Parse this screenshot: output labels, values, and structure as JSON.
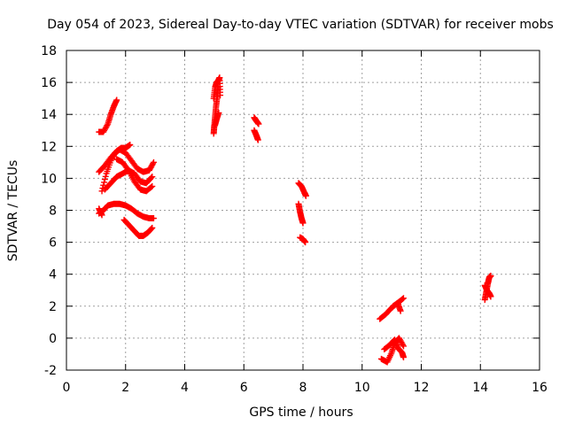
{
  "chart_data": {
    "type": "scatter",
    "title": "Day 054 of 2023, Sidereal Day-to-day VTEC variation (SDTVAR) for receiver mobs",
    "xlabel": "GPS time / hours",
    "ylabel": "SDTVAR / TECUs",
    "xlim": [
      0,
      16
    ],
    "ylim": [
      -2,
      18
    ],
    "xticks": [
      0,
      2,
      4,
      6,
      8,
      10,
      12,
      14,
      16
    ],
    "yticks": [
      -2,
      0,
      2,
      4,
      6,
      8,
      10,
      12,
      14,
      16,
      18
    ],
    "grid": true,
    "marker": "+",
    "series": [
      {
        "name": "SDTVAR",
        "color": "#ff0000",
        "tracks": [
          {
            "x": [
              1.1,
              1.25,
              1.4,
              1.5,
              1.6,
              1.7
            ],
            "y": [
              12.9,
              12.9,
              13.4,
              14.0,
              14.5,
              14.9
            ]
          },
          {
            "x": [
              1.1,
              1.3,
              1.5,
              1.7,
              1.85,
              2.0,
              2.15
            ],
            "y": [
              10.4,
              10.8,
              11.3,
              11.7,
              11.9,
              11.9,
              12.1
            ]
          },
          {
            "x": [
              1.2,
              1.35,
              1.5,
              1.65,
              1.8,
              2.0,
              2.2,
              2.4,
              2.6,
              2.8,
              2.95
            ],
            "y": [
              9.2,
              10.3,
              11.1,
              11.6,
              11.8,
              11.6,
              11.1,
              10.6,
              10.4,
              10.5,
              11.0
            ]
          },
          {
            "x": [
              1.3,
              1.5,
              1.7,
              1.9,
              2.1,
              2.3,
              2.5,
              2.7,
              2.9
            ],
            "y": [
              9.3,
              9.7,
              10.1,
              10.3,
              10.5,
              10.3,
              9.8,
              9.7,
              10.1
            ]
          },
          {
            "x": [
              1.7,
              1.9,
              2.1,
              2.3,
              2.5,
              2.7,
              2.9
            ],
            "y": [
              11.2,
              11.0,
              10.5,
              9.8,
              9.3,
              9.2,
              9.5
            ]
          },
          {
            "x": [
              1.1,
              1.25,
              1.4,
              1.6,
              1.8,
              2.0,
              2.2,
              2.4,
              2.6,
              2.8,
              2.95
            ],
            "y": [
              7.8,
              8.0,
              8.3,
              8.4,
              8.4,
              8.3,
              8.1,
              7.8,
              7.6,
              7.5,
              7.5
            ]
          },
          {
            "x": [
              1.1,
              1.2
            ],
            "y": [
              8.1,
              7.7
            ]
          },
          {
            "x": [
              1.95,
              2.1,
              2.3,
              2.45,
              2.6,
              2.75,
              2.9
            ],
            "y": [
              7.4,
              7.1,
              6.7,
              6.4,
              6.4,
              6.6,
              6.9
            ]
          },
          {
            "x": [
              4.98,
              5.03,
              5.08,
              5.13,
              5.18,
              5.2
            ],
            "y": [
              15.0,
              15.7,
              16.0,
              16.1,
              16.3,
              15.2
            ]
          },
          {
            "x": [
              4.98,
              5.0,
              5.03,
              5.06,
              5.1,
              5.13
            ],
            "y": [
              12.8,
              13.3,
              13.9,
              14.5,
              15.1,
              15.7
            ]
          },
          {
            "x": [
              5.02,
              5.08,
              5.15
            ],
            "y": [
              13.3,
              13.7,
              14.1
            ]
          },
          {
            "x": [
              6.35,
              6.42,
              6.5
            ],
            "y": [
              13.8,
              13.6,
              13.4
            ]
          },
          {
            "x": [
              6.35,
              6.42,
              6.48
            ],
            "y": [
              13.0,
              12.7,
              12.4
            ]
          },
          {
            "x": [
              7.85,
              7.95,
              8.05,
              8.1
            ],
            "y": [
              9.7,
              9.5,
              9.1,
              8.9
            ]
          },
          {
            "x": [
              7.85,
              7.9,
              7.95,
              8.0
            ],
            "y": [
              8.4,
              7.9,
              7.5,
              7.2
            ]
          },
          {
            "x": [
              7.9,
              8.0,
              8.08
            ],
            "y": [
              6.3,
              6.2,
              6.0
            ]
          },
          {
            "x": [
              10.6,
              10.8,
              11.0,
              11.2,
              11.4
            ],
            "y": [
              1.2,
              1.5,
              1.9,
              2.2,
              2.5
            ]
          },
          {
            "x": [
              11.05,
              11.2,
              11.3
            ],
            "y": [
              2.0,
              2.2,
              1.7
            ]
          },
          {
            "x": [
              10.65,
              10.85,
              11.0,
              11.1,
              11.25,
              11.4
            ],
            "y": [
              -1.3,
              -1.5,
              -0.9,
              -0.3,
              0.0,
              -0.5
            ]
          },
          {
            "x": [
              10.75,
              10.95,
              11.1,
              11.2,
              11.35,
              11.4
            ],
            "y": [
              -0.7,
              -0.4,
              -0.1,
              -0.6,
              -0.9,
              -1.2
            ]
          },
          {
            "x": [
              14.15,
              14.2,
              14.25,
              14.3,
              14.35
            ],
            "y": [
              2.4,
              2.9,
              3.4,
              3.8,
              3.9
            ]
          },
          {
            "x": [
              14.15,
              14.22,
              14.3,
              14.35
            ],
            "y": [
              3.3,
              3.0,
              2.8,
              2.6
            ]
          }
        ]
      }
    ]
  }
}
